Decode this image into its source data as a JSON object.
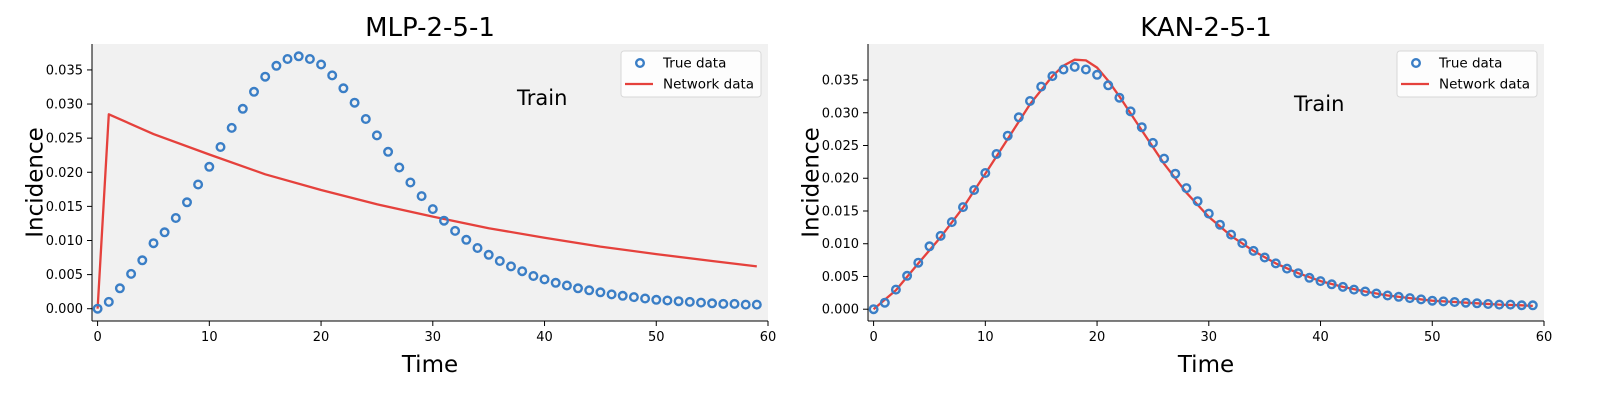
{
  "colors": {
    "true_data": "#3a7ec6",
    "network_data": "#e5413c",
    "plot_background": "#f1f1f1"
  },
  "chart_data": [
    {
      "type": "line",
      "title": "MLP-2-5-1",
      "xlabel": "Time",
      "ylabel": "Incidence",
      "xlim": [
        -0.5,
        60
      ],
      "ylim": [
        -0.0018,
        0.0388
      ],
      "xticks": [
        "0",
        "10",
        "20",
        "30",
        "40",
        "50",
        "60"
      ],
      "yticks": [
        "0.000",
        "0.005",
        "0.010",
        "0.015",
        "0.020",
        "0.025",
        "0.030",
        "0.035"
      ],
      "grid": false,
      "legend_position": "top-right",
      "annotation": "Train",
      "series": [
        {
          "name": "True data",
          "style": "open-circle",
          "x": [
            0,
            1,
            2,
            3,
            4,
            5,
            6,
            7,
            8,
            9,
            10,
            11,
            12,
            13,
            14,
            15,
            16,
            17,
            18,
            19,
            20,
            21,
            22,
            23,
            24,
            25,
            26,
            27,
            28,
            29,
            30,
            31,
            32,
            33,
            34,
            35,
            36,
            37,
            38,
            39,
            40,
            41,
            42,
            43,
            44,
            45,
            46,
            47,
            48,
            49,
            50,
            51,
            52,
            53,
            54,
            55,
            56,
            57,
            58,
            59
          ],
          "y": [
            0.0,
            0.001,
            0.003,
            0.0051,
            0.0071,
            0.0096,
            0.0112,
            0.0133,
            0.0156,
            0.0182,
            0.0208,
            0.0237,
            0.0265,
            0.0293,
            0.0318,
            0.034,
            0.0356,
            0.0366,
            0.037,
            0.0366,
            0.0358,
            0.0342,
            0.0323,
            0.0302,
            0.0278,
            0.0254,
            0.023,
            0.0207,
            0.0185,
            0.0165,
            0.0146,
            0.0129,
            0.0114,
            0.0101,
            0.0089,
            0.0079,
            0.007,
            0.0062,
            0.0055,
            0.0048,
            0.0043,
            0.0038,
            0.0034,
            0.003,
            0.0027,
            0.0024,
            0.0021,
            0.0019,
            0.0017,
            0.0015,
            0.0013,
            0.0012,
            0.0011,
            0.001,
            0.0009,
            0.0008,
            0.0007,
            0.0007,
            0.0006,
            0.0006
          ]
        },
        {
          "name": "Network data",
          "style": "line",
          "x": [
            0,
            1,
            5,
            10,
            15,
            20,
            25,
            30,
            35,
            40,
            45,
            50,
            55,
            59
          ],
          "y": [
            0.0,
            0.0285,
            0.0256,
            0.0226,
            0.0197,
            0.0174,
            0.0153,
            0.0135,
            0.0118,
            0.0104,
            0.0091,
            0.008,
            0.007,
            0.0062
          ]
        }
      ]
    },
    {
      "type": "line",
      "title": "KAN-2-5-1",
      "xlabel": "Time",
      "ylabel": "Incidence",
      "xlim": [
        -0.5,
        60
      ],
      "ylim": [
        -0.0018,
        0.0405
      ],
      "xticks": [
        "0",
        "10",
        "20",
        "30",
        "40",
        "50",
        "60"
      ],
      "yticks": [
        "0.000",
        "0.005",
        "0.010",
        "0.015",
        "0.020",
        "0.025",
        "0.030",
        "0.035"
      ],
      "grid": false,
      "legend_position": "top-right",
      "annotation": "Train",
      "series": [
        {
          "name": "True data",
          "style": "open-circle",
          "x": [
            0,
            1,
            2,
            3,
            4,
            5,
            6,
            7,
            8,
            9,
            10,
            11,
            12,
            13,
            14,
            15,
            16,
            17,
            18,
            19,
            20,
            21,
            22,
            23,
            24,
            25,
            26,
            27,
            28,
            29,
            30,
            31,
            32,
            33,
            34,
            35,
            36,
            37,
            38,
            39,
            40,
            41,
            42,
            43,
            44,
            45,
            46,
            47,
            48,
            49,
            50,
            51,
            52,
            53,
            54,
            55,
            56,
            57,
            58,
            59
          ],
          "y": [
            0.0,
            0.001,
            0.003,
            0.0051,
            0.0071,
            0.0096,
            0.0112,
            0.0133,
            0.0156,
            0.0182,
            0.0208,
            0.0237,
            0.0265,
            0.0293,
            0.0318,
            0.034,
            0.0356,
            0.0366,
            0.037,
            0.0366,
            0.0358,
            0.0342,
            0.0323,
            0.0302,
            0.0278,
            0.0254,
            0.023,
            0.0207,
            0.0185,
            0.0165,
            0.0146,
            0.0129,
            0.0114,
            0.0101,
            0.0089,
            0.0079,
            0.007,
            0.0062,
            0.0055,
            0.0048,
            0.0043,
            0.0038,
            0.0034,
            0.003,
            0.0027,
            0.0024,
            0.0021,
            0.0019,
            0.0017,
            0.0015,
            0.0013,
            0.0012,
            0.0011,
            0.001,
            0.0009,
            0.0008,
            0.0007,
            0.0007,
            0.0006,
            0.0006
          ]
        },
        {
          "name": "Network data",
          "style": "line",
          "x": [
            0,
            2,
            4,
            6,
            8,
            10,
            12,
            14,
            16,
            17,
            18,
            19,
            20,
            21,
            22,
            24,
            26,
            28,
            30,
            32,
            34,
            36,
            38,
            40,
            42,
            44,
            46,
            48,
            50,
            52,
            54,
            56,
            58,
            59
          ],
          "y": [
            0.0,
            0.0029,
            0.007,
            0.011,
            0.0155,
            0.0207,
            0.026,
            0.0313,
            0.0356,
            0.0372,
            0.0381,
            0.038,
            0.0369,
            0.0349,
            0.0325,
            0.0273,
            0.0222,
            0.0178,
            0.0141,
            0.0112,
            0.0089,
            0.007,
            0.0055,
            0.0043,
            0.0034,
            0.0027,
            0.0021,
            0.0017,
            0.0013,
            0.0011,
            0.0009,
            0.0007,
            0.0006,
            0.0005
          ]
        }
      ]
    }
  ]
}
